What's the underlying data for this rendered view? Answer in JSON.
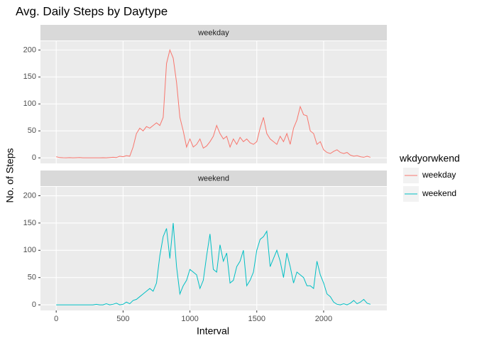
{
  "chart_data": {
    "type": "line",
    "title": "Avg. Daily Steps by Daytype",
    "xlabel": "Interval",
    "ylabel": "No. of Steps",
    "legend_title": "wkdyorwkend",
    "facet_by": "series",
    "grid": true,
    "x": [
      0,
      25,
      50,
      75,
      100,
      125,
      150,
      175,
      200,
      225,
      250,
      275,
      300,
      325,
      350,
      375,
      400,
      425,
      450,
      475,
      500,
      525,
      550,
      575,
      600,
      625,
      650,
      675,
      700,
      725,
      750,
      775,
      800,
      825,
      850,
      875,
      900,
      925,
      950,
      975,
      1000,
      1025,
      1050,
      1075,
      1100,
      1125,
      1150,
      1175,
      1200,
      1225,
      1250,
      1275,
      1300,
      1325,
      1350,
      1375,
      1400,
      1425,
      1450,
      1475,
      1500,
      1525,
      1550,
      1575,
      1600,
      1625,
      1650,
      1675,
      1700,
      1725,
      1750,
      1775,
      1800,
      1825,
      1850,
      1875,
      1900,
      1925,
      1950,
      1975,
      2000,
      2025,
      2050,
      2075,
      2100,
      2125,
      2150,
      2175,
      2200,
      2225,
      2250,
      2275,
      2300,
      2325,
      2350
    ],
    "series": [
      {
        "name": "weekday",
        "color": "#f8766d",
        "values": [
          2,
          0.5,
          0.2,
          0.1,
          0.4,
          0.1,
          0.3,
          0.5,
          0,
          0.1,
          0,
          0,
          0,
          0,
          0.2,
          0,
          0.5,
          1,
          0.5,
          3,
          2,
          4,
          3,
          20,
          45,
          55,
          50,
          58,
          55,
          60,
          65,
          60,
          75,
          175,
          200,
          185,
          140,
          75,
          50,
          20,
          35,
          20,
          25,
          35,
          18,
          22,
          30,
          40,
          60,
          45,
          35,
          40,
          20,
          35,
          25,
          38,
          30,
          35,
          28,
          25,
          30,
          55,
          75,
          45,
          35,
          30,
          25,
          40,
          30,
          45,
          25,
          55,
          70,
          95,
          80,
          78,
          50,
          45,
          25,
          30,
          15,
          10,
          8,
          12,
          15,
          10,
          8,
          10,
          5,
          3,
          4,
          2,
          1,
          3,
          1
        ]
      },
      {
        "name": "weekend",
        "color": "#00bfc4",
        "values": [
          0,
          0,
          0,
          0,
          0,
          0,
          0,
          0,
          0,
          0,
          0,
          0,
          1,
          0,
          0,
          2,
          0,
          1,
          3,
          0,
          1,
          5,
          2,
          8,
          10,
          15,
          20,
          25,
          30,
          25,
          40,
          90,
          125,
          140,
          85,
          150,
          70,
          20,
          35,
          45,
          65,
          60,
          55,
          30,
          45,
          90,
          130,
          65,
          60,
          110,
          80,
          95,
          40,
          45,
          70,
          80,
          100,
          35,
          45,
          60,
          100,
          120,
          125,
          135,
          70,
          85,
          100,
          80,
          50,
          95,
          70,
          40,
          60,
          55,
          50,
          35,
          35,
          30,
          80,
          55,
          40,
          20,
          15,
          5,
          1,
          0,
          2,
          0,
          3,
          8,
          2,
          5,
          10,
          3,
          1
        ]
      }
    ],
    "xlim": [
      -117.75,
      2472.75
    ],
    "xticks": [
      0,
      500,
      1000,
      1500,
      2000
    ],
    "ylim": [
      -10.3,
      216.3
    ],
    "yticks": [
      0,
      50,
      100,
      150,
      200
    ]
  }
}
